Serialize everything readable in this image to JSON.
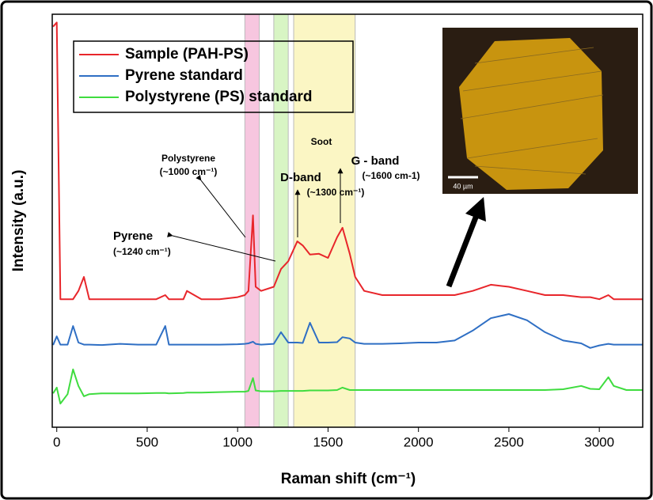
{
  "chart_data": {
    "type": "line",
    "ylabel": "Intensity (a.u.)",
    "xlabel": "Raman shift (cm⁻¹)",
    "x": [
      -20,
      0,
      20,
      60,
      90,
      120,
      150,
      180,
      250,
      350,
      450,
      550,
      600,
      620,
      700,
      720,
      800,
      900,
      1000,
      1040,
      1060,
      1085,
      1100,
      1130,
      1200,
      1240,
      1280,
      1330,
      1360,
      1400,
      1450,
      1500,
      1550,
      1580,
      1620,
      1650,
      1700,
      1800,
      1900,
      2000,
      2100,
      2200,
      2300,
      2400,
      2500,
      2600,
      2700,
      2800,
      2900,
      2950,
      3000,
      3050,
      3080,
      3150,
      3240
    ],
    "series": [
      {
        "name": "Sample (PAH-PS)",
        "color": "#e8262b",
        "values": [
          97,
          98,
          31,
          31,
          31,
          33,
          36.4,
          31,
          31,
          31,
          31,
          31,
          32,
          31,
          31,
          33,
          31,
          31,
          31.5,
          32,
          33,
          51.3,
          34,
          33,
          34,
          38.3,
          40.2,
          45,
          44,
          41.8,
          42,
          41,
          46,
          48.3,
          42,
          36.4,
          33,
          32,
          32,
          32,
          32,
          32,
          33,
          34.5,
          34,
          33,
          32,
          32,
          31.5,
          31.5,
          31,
          32,
          31,
          31,
          31
        ]
      },
      {
        "name": "Pyrene standard",
        "color": "#2f6fc4",
        "values": [
          19.9,
          22,
          20,
          20,
          24.5,
          20.5,
          20,
          20,
          19.9,
          20.2,
          20,
          20,
          24.5,
          20,
          20,
          20,
          20,
          20,
          20.1,
          20.2,
          20.3,
          20.7,
          20.2,
          20,
          20.2,
          23,
          20.5,
          20.5,
          20.4,
          25.3,
          20.5,
          20.5,
          20.6,
          21.8,
          21.5,
          20.5,
          20.2,
          20.2,
          20.3,
          20.5,
          20.5,
          21,
          23.4,
          26.4,
          27.4,
          25.9,
          23,
          21,
          20.3,
          19.2,
          19.8,
          20.2,
          20,
          20,
          20
        ]
      },
      {
        "name": "Polystyrene (PS) standard",
        "color": "#3fdc3f",
        "values": [
          8.2,
          9.6,
          5.7,
          8,
          14,
          10,
          7.5,
          8,
          8.2,
          8.2,
          8.2,
          8.3,
          8.3,
          8.2,
          8.3,
          8.4,
          8.4,
          8.5,
          8.6,
          8.6,
          8.8,
          11.9,
          8.9,
          8.7,
          8.7,
          8.8,
          8.8,
          8.8,
          8.8,
          8.9,
          8.9,
          8.9,
          9,
          9.6,
          9,
          9,
          9,
          9,
          9,
          9,
          9,
          9,
          9,
          9,
          9,
          9,
          9,
          9.2,
          10,
          9.3,
          9.2,
          12.1,
          10,
          9,
          9
        ]
      }
    ],
    "xlim": [
      -25,
      3240
    ],
    "ylim": [
      0,
      100
    ],
    "xticks": [
      0,
      500,
      1000,
      1500,
      2000,
      2500,
      3000
    ],
    "highlight_bands": [
      {
        "xlim": [
          1040,
          1120
        ],
        "color": "#f7c6df"
      },
      {
        "xlim": [
          1200,
          1280
        ],
        "color": "#d8f5c4"
      },
      {
        "xlim": [
          1310,
          1650
        ],
        "color": "#fbf6c4"
      }
    ],
    "annotations": {
      "polystyrene": "Polystyrene",
      "polystyrene_shift": "(~1000 cm⁻¹)",
      "pyrene": "Pyrene",
      "pyrene_shift": "(~1240 cm⁻¹)",
      "soot": "Soot",
      "d_band": "D-band",
      "d_band_shift": "(~1300 cm⁻¹)",
      "g_band": "G - band",
      "g_band_shift": "(~1600 cm-1)",
      "scale_bar": "40 µm"
    },
    "legend": "upper left"
  }
}
